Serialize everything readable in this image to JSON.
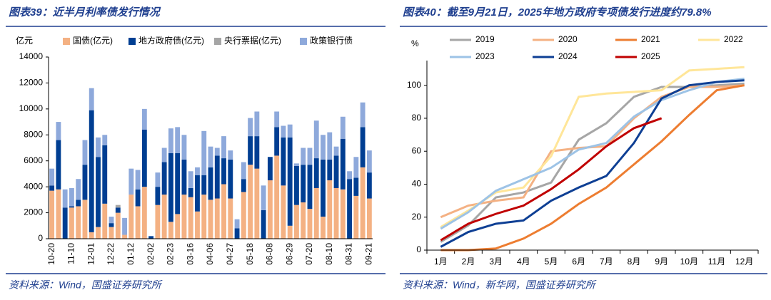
{
  "chart_data": [
    {
      "type": "bar",
      "stacked": true,
      "title": "图表39：近半月利率债发行情况",
      "y_label": "亿元",
      "source": "资料来源：Wind，国盛证券研究所",
      "categories": [
        "10-20",
        null,
        null,
        "11-10",
        null,
        null,
        "12-01",
        null,
        null,
        "12-22",
        null,
        null,
        "01-12",
        null,
        null,
        "02-02",
        null,
        null,
        "02-23",
        null,
        null,
        "03-16",
        null,
        null,
        "04-06",
        null,
        null,
        "04-27",
        null,
        null,
        "05-18",
        null,
        null,
        "06-08",
        null,
        null,
        "06-29",
        null,
        null,
        "07-20",
        null,
        null,
        "08-10",
        null,
        null,
        "08-31",
        null,
        null,
        "09-21"
      ],
      "series": [
        {
          "name": "国债(亿元)",
          "color": "#f4b183",
          "values": [
            3700,
            3800,
            0,
            2400,
            2500,
            3000,
            500,
            900,
            2700,
            900,
            2000,
            300,
            3400,
            2500,
            4000,
            0,
            2600,
            3400,
            1300,
            1900,
            3400,
            3200,
            2100,
            3400,
            3000,
            3100,
            4200,
            3100,
            0,
            3600,
            5700,
            5400,
            0,
            4500,
            6400,
            4100,
            1000,
            2600,
            2800,
            2300,
            3900,
            1700,
            4500,
            3900,
            3800,
            0,
            3300,
            5500,
            3100
          ]
        },
        {
          "name": "地方政府债(亿元)",
          "color": "#003e92",
          "values": [
            400,
            3800,
            2400,
            100,
            500,
            2700,
            9400,
            5400,
            4500,
            300,
            400,
            0,
            0,
            1300,
            4400,
            200,
            1400,
            2500,
            5300,
            4700,
            2700,
            700,
            2800,
            1500,
            2500,
            3300,
            2000,
            3000,
            800,
            1000,
            2200,
            2500,
            2200,
            1800,
            2200,
            3700,
            6800,
            3000,
            2900,
            3400,
            2300,
            4400,
            1600,
            2500,
            3900,
            4600,
            1400,
            3100,
            2000
          ]
        },
        {
          "name": "央行票据(亿元)",
          "color": "#a5a5a5",
          "values": [
            0,
            0,
            0,
            0,
            0,
            0,
            0,
            0,
            0,
            0,
            200,
            0,
            0,
            0,
            0,
            0,
            0,
            0,
            0,
            0,
            0,
            0,
            0,
            0,
            0,
            0,
            0,
            0,
            0,
            0,
            0,
            0,
            0,
            0,
            0,
            0,
            0,
            0,
            0,
            0,
            0,
            0,
            0,
            0,
            0,
            0,
            0,
            0,
            0
          ]
        },
        {
          "name": "政策银行债",
          "color": "#8ea9db",
          "values": [
            1300,
            1400,
            1400,
            1400,
            1600,
            1900,
            1700,
            1500,
            800,
            500,
            0,
            1300,
            2000,
            1500,
            1600,
            0,
            1100,
            1100,
            1900,
            2000,
            1900,
            1300,
            600,
            3400,
            1600,
            600,
            1700,
            700,
            700,
            1300,
            1400,
            1900,
            1900,
            0,
            1200,
            900,
            1000,
            200,
            1300,
            1300,
            2900,
            1900,
            2100,
            700,
            1700,
            600,
            1600,
            1900,
            1700
          ]
        }
      ],
      "ylim": [
        0,
        14000
      ],
      "yticks": [
        0,
        2000,
        4000,
        6000,
        8000,
        10000,
        12000,
        14000
      ]
    },
    {
      "type": "line",
      "title": "图表40：截至9月21日，2025年地方政府专项债发行进度约79.8%",
      "y_label": "%",
      "source": "资料来源：Wind，新华网，国盛证券研究所",
      "categories": [
        "1月",
        "2月",
        "3月",
        "4月",
        "5月",
        "6月",
        "7月",
        "8月",
        "9月",
        "10月",
        "11月",
        "12月"
      ],
      "series": [
        {
          "name": "2019",
          "color": "#a6a6a6",
          "values": [
            5,
            15,
            32,
            35,
            41,
            67,
            77,
            93,
            99,
            99,
            100,
            101
          ]
        },
        {
          "name": "2020",
          "color": "#f4b183",
          "values": [
            20,
            27,
            30,
            32,
            60,
            62,
            63,
            80,
            93,
            99,
            99,
            100
          ]
        },
        {
          "name": "2021",
          "color": "#ed7d31",
          "values": [
            0,
            0,
            1,
            7,
            16,
            28,
            38,
            52,
            66,
            82,
            97,
            100
          ]
        },
        {
          "name": "2022",
          "color": "#ffe699",
          "values": [
            14,
            24,
            35,
            38,
            57,
            93,
            95,
            96,
            97,
            109,
            110,
            111
          ]
        },
        {
          "name": "2023",
          "color": "#9dc3e6",
          "values": [
            13,
            23,
            36,
            43,
            50,
            61,
            65,
            81,
            91,
            97,
            102,
            104
          ]
        },
        {
          "name": "2024",
          "color": "#0e3f94",
          "values": [
            2,
            11,
            16,
            18,
            30,
            38,
            45,
            65,
            92,
            100,
            102,
            103
          ]
        },
        {
          "name": "2025",
          "color": "#c00000",
          "values": [
            6,
            16,
            22,
            27,
            37,
            49,
            63,
            74,
            80,
            null,
            null,
            null
          ]
        }
      ],
      "ylim": [
        0,
        115
      ],
      "yticks": [
        0,
        20,
        40,
        60,
        80,
        100
      ]
    }
  ]
}
